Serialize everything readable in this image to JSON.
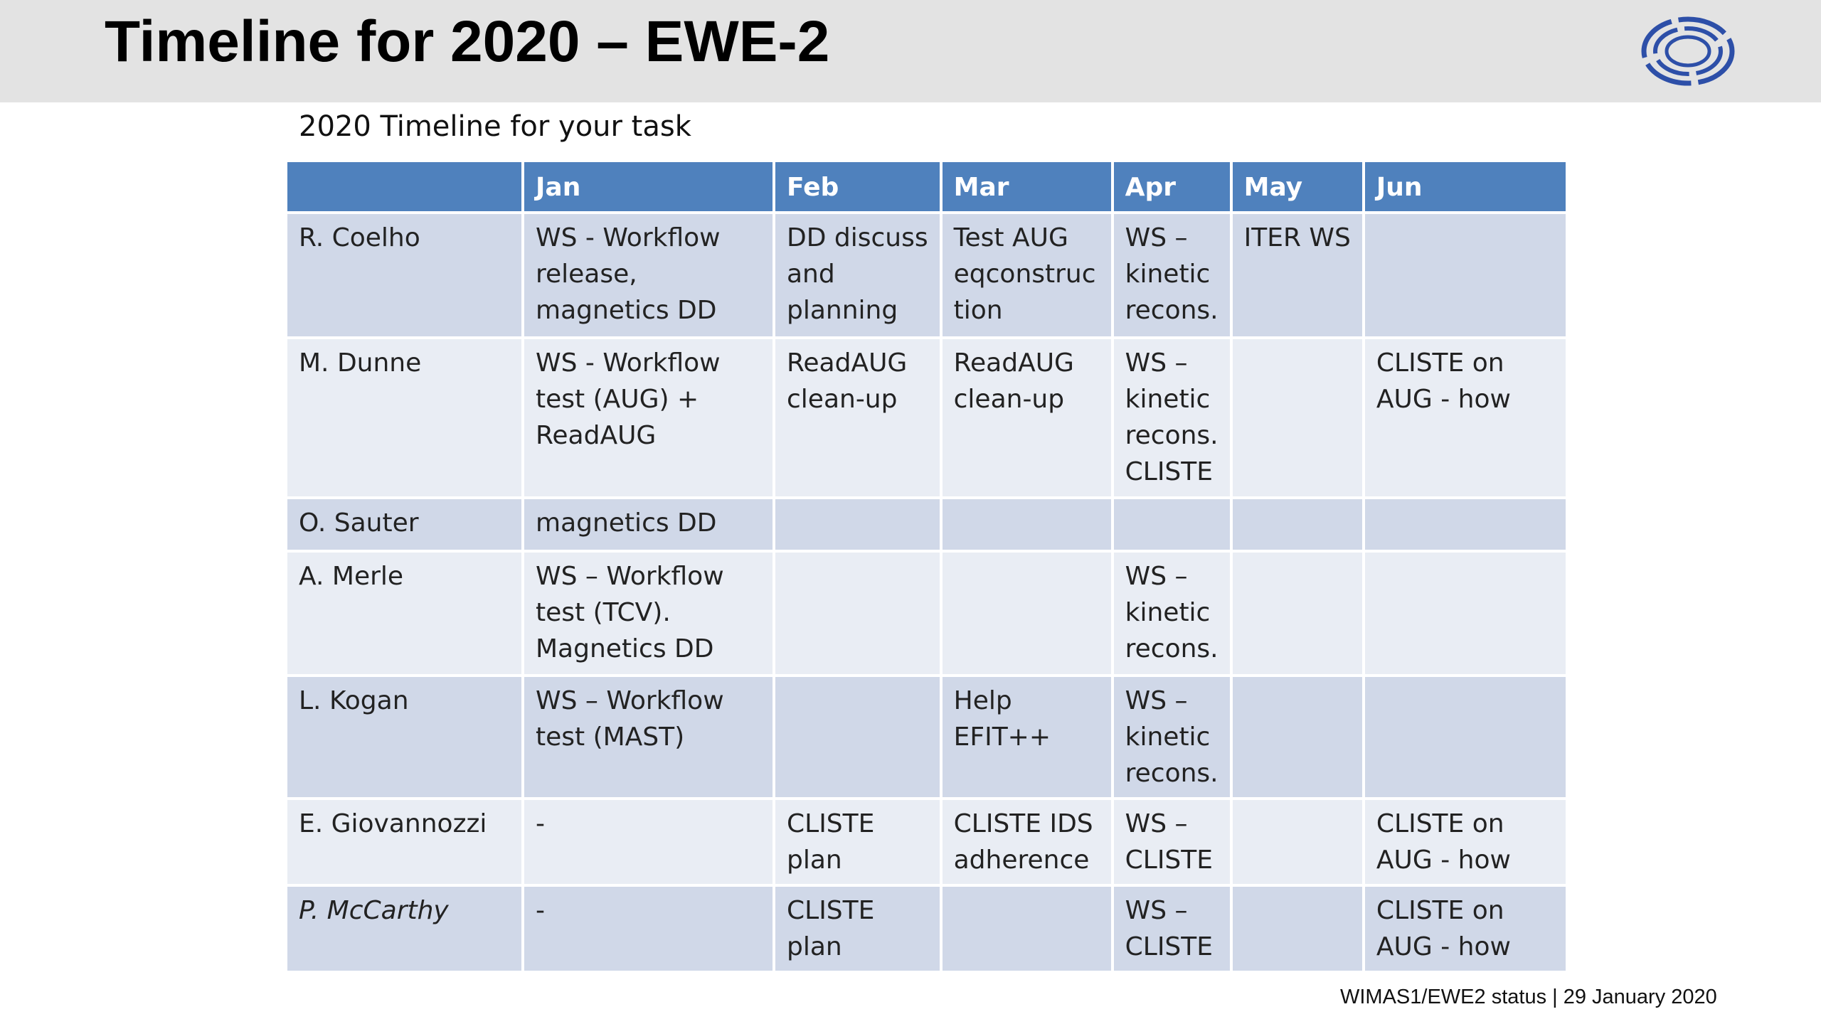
{
  "header": {
    "title": "Timeline for 2020 – EWE-2"
  },
  "subtitle": "2020 Timeline for your task",
  "table": {
    "columns": [
      "Jan",
      "Feb",
      "Mar",
      "Apr",
      "May",
      "Jun"
    ],
    "rows": [
      {
        "name": "R. Coelho",
        "cells": [
          [
            "WS - Workflow",
            "release,",
            "magnetics DD"
          ],
          [
            "DD discuss",
            "and",
            "planning"
          ],
          [
            "Test AUG",
            "eqconstruc",
            "tion"
          ],
          [
            "WS –",
            "kinetic",
            "recons."
          ],
          [
            "ITER WS"
          ],
          null
        ]
      },
      {
        "name": "M. Dunne",
        "cells": [
          [
            "WS - Workflow",
            "test  (AUG) +",
            "ReadAUG"
          ],
          [
            "ReadAUG",
            "clean-up"
          ],
          [
            "ReadAUG",
            "clean-up"
          ],
          [
            "WS –",
            "kinetic",
            "recons.",
            "CLISTE"
          ],
          null,
          [
            "CLISTE on",
            "AUG - how"
          ]
        ]
      },
      {
        "name": "O. Sauter",
        "cells": [
          [
            "magnetics DD"
          ],
          null,
          null,
          null,
          null,
          null
        ]
      },
      {
        "name": "A. Merle",
        "cells": [
          [
            "WS – Workflow",
            "test (TCV).",
            "Magnetics DD"
          ],
          null,
          null,
          [
            "WS –",
            "kinetic",
            "recons."
          ],
          null,
          null
        ]
      },
      {
        "name": "L. Kogan",
        "cells": [
          [
            "WS – Workflow",
            "test (MAST)"
          ],
          null,
          [
            "Help",
            "EFIT++"
          ],
          [
            "WS –",
            "kinetic",
            "recons."
          ],
          null,
          null
        ]
      },
      {
        "name": "E. Giovannozzi",
        "cells": [
          [
            "-"
          ],
          [
            "CLISTE",
            "plan"
          ],
          [
            "CLISTE IDS",
            "adherence"
          ],
          [
            "WS –",
            "CLISTE"
          ],
          null,
          [
            "CLISTE on",
            "AUG - how"
          ]
        ]
      },
      {
        "name": "P. McCarthy",
        "cells": [
          [
            "-"
          ],
          [
            "CLISTE",
            "plan"
          ],
          null,
          [
            "WS –",
            "CLISTE"
          ],
          null,
          [
            "CLISTE on",
            "AUG - how"
          ]
        ]
      }
    ]
  },
  "footer": "WIMAS1/EWE2 status | 29 January 2020"
}
